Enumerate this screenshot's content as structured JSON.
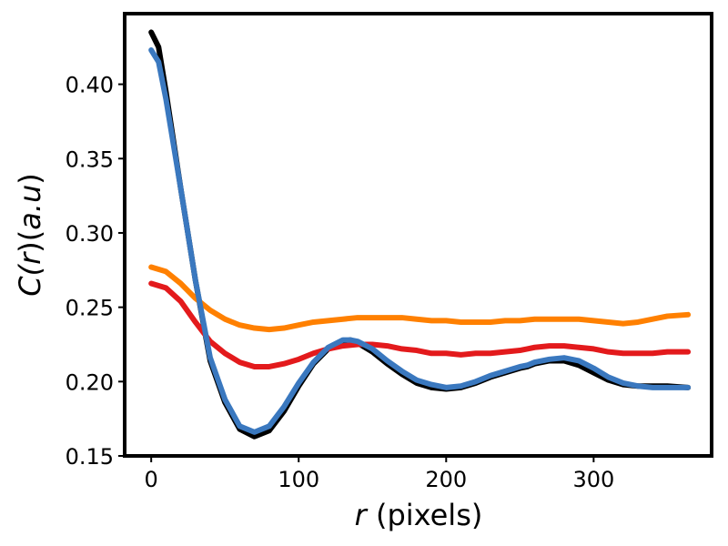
{
  "chart_data": {
    "type": "line",
    "title": "",
    "xlabel_var": "r",
    "xlabel_unit": " (pixels)",
    "ylabel_parts": [
      "C(",
      "r",
      ")(",
      "a.u",
      ")"
    ],
    "xlim": [
      -18,
      380
    ],
    "ylim": [
      0.15,
      0.4475
    ],
    "xticks": [
      0,
      100,
      200,
      300
    ],
    "xtick_labels": [
      "0",
      "100",
      "200",
      "300"
    ],
    "yticks": [
      0.15,
      0.2,
      0.25,
      0.3,
      0.35,
      0.4
    ],
    "ytick_labels": [
      "0.15",
      "0.20",
      "0.25",
      "0.30",
      "0.35",
      "0.40"
    ],
    "grid": false,
    "legend": "none",
    "series": [
      {
        "color": "#000000",
        "x": [
          0,
          5,
          10,
          20,
          30,
          40,
          50,
          60,
          70,
          80,
          90,
          100,
          110,
          120,
          130,
          135,
          140,
          150,
          160,
          170,
          180,
          190,
          200,
          210,
          220,
          230,
          240,
          250,
          255,
          260,
          270,
          280,
          290,
          300,
          310,
          320,
          330,
          340,
          350,
          364
        ],
        "y": [
          0.435,
          0.425,
          0.395,
          0.33,
          0.268,
          0.214,
          0.186,
          0.168,
          0.163,
          0.167,
          0.18,
          0.197,
          0.212,
          0.222,
          0.227,
          0.228,
          0.226,
          0.22,
          0.212,
          0.205,
          0.199,
          0.196,
          0.195,
          0.196,
          0.199,
          0.203,
          0.206,
          0.209,
          0.21,
          0.212,
          0.214,
          0.214,
          0.211,
          0.206,
          0.201,
          0.198,
          0.197,
          0.197,
          0.197,
          0.196
        ]
      },
      {
        "color": "#ff8000",
        "x": [
          0,
          10,
          20,
          30,
          40,
          50,
          60,
          70,
          80,
          90,
          100,
          110,
          120,
          130,
          140,
          150,
          160,
          170,
          180,
          190,
          200,
          210,
          220,
          230,
          240,
          250,
          260,
          270,
          280,
          290,
          300,
          310,
          320,
          330,
          340,
          350,
          364
        ],
        "y": [
          0.277,
          0.274,
          0.266,
          0.256,
          0.248,
          0.242,
          0.238,
          0.236,
          0.235,
          0.236,
          0.238,
          0.24,
          0.241,
          0.242,
          0.243,
          0.243,
          0.243,
          0.243,
          0.242,
          0.241,
          0.241,
          0.24,
          0.24,
          0.24,
          0.241,
          0.241,
          0.242,
          0.242,
          0.242,
          0.242,
          0.241,
          0.24,
          0.239,
          0.24,
          0.242,
          0.244,
          0.245
        ]
      },
      {
        "color": "#e31a1c",
        "x": [
          0,
          10,
          20,
          30,
          40,
          50,
          60,
          70,
          80,
          90,
          100,
          110,
          120,
          130,
          140,
          150,
          160,
          170,
          180,
          190,
          200,
          210,
          220,
          230,
          240,
          250,
          255,
          260,
          270,
          280,
          290,
          300,
          310,
          320,
          330,
          340,
          350,
          364
        ],
        "y": [
          0.266,
          0.263,
          0.254,
          0.24,
          0.227,
          0.219,
          0.213,
          0.21,
          0.21,
          0.212,
          0.215,
          0.219,
          0.222,
          0.224,
          0.225,
          0.225,
          0.224,
          0.222,
          0.221,
          0.219,
          0.219,
          0.218,
          0.219,
          0.219,
          0.22,
          0.221,
          0.222,
          0.223,
          0.224,
          0.224,
          0.223,
          0.222,
          0.22,
          0.219,
          0.219,
          0.219,
          0.22,
          0.22
        ]
      },
      {
        "color": "#3a78bf",
        "x": [
          0,
          5,
          10,
          20,
          30,
          40,
          50,
          60,
          70,
          80,
          90,
          100,
          110,
          120,
          130,
          135,
          140,
          150,
          160,
          170,
          180,
          190,
          200,
          210,
          220,
          230,
          240,
          250,
          255,
          260,
          270,
          280,
          290,
          300,
          310,
          320,
          330,
          340,
          350,
          364
        ],
        "y": [
          0.423,
          0.415,
          0.39,
          0.33,
          0.268,
          0.216,
          0.188,
          0.17,
          0.166,
          0.17,
          0.183,
          0.199,
          0.213,
          0.223,
          0.228,
          0.228,
          0.227,
          0.222,
          0.214,
          0.207,
          0.201,
          0.198,
          0.196,
          0.197,
          0.2,
          0.204,
          0.207,
          0.21,
          0.211,
          0.213,
          0.215,
          0.216,
          0.214,
          0.209,
          0.203,
          0.199,
          0.197,
          0.196,
          0.196,
          0.196
        ]
      }
    ]
  }
}
